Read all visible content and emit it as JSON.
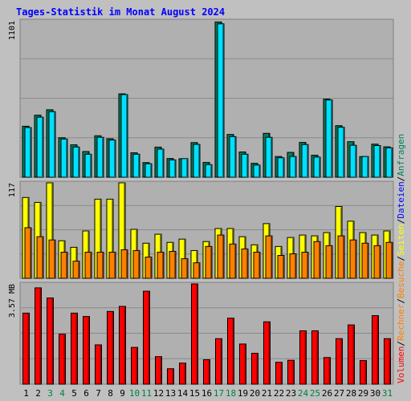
{
  "colors": {
    "background": "#c0c0c0",
    "panel": "#b0b0b0",
    "title": "#0000ff",
    "anfragen": "#00805c",
    "dateien": "#00e0ff",
    "seiten": "#ffff00",
    "besuche": "#ff8000",
    "rechner": "#ff8000",
    "volumen": "#ff0000",
    "weekend": "#008040",
    "weekday": "#000000"
  },
  "chart_data": {
    "title": "Tages-Statistik im Monat August 2024",
    "type": "bar",
    "grid": true,
    "days": [
      "1",
      "2",
      "3",
      "4",
      "5",
      "6",
      "7",
      "8",
      "9",
      "10",
      "11",
      "12",
      "13",
      "14",
      "15",
      "16",
      "17",
      "18",
      "19",
      "20",
      "21",
      "22",
      "23",
      "24",
      "25",
      "26",
      "27",
      "28",
      "29",
      "30",
      "31"
    ],
    "weekend_days": [
      "3",
      "4",
      "10",
      "11",
      "17",
      "18",
      "24",
      "25",
      "31"
    ],
    "right_legend": [
      {
        "label": "Volumen",
        "color": "#ff0000"
      },
      {
        "label": "/",
        "color": "#000000"
      },
      {
        "label": "Rechner",
        "color": "#ff8000"
      },
      {
        "label": "/",
        "color": "#000000"
      },
      {
        "label": "Besuche",
        "color": "#ff8000"
      },
      {
        "label": "/",
        "color": "#000000"
      },
      {
        "label": "Seiten",
        "color": "#ffff00"
      },
      {
        "label": "/",
        "color": "#000000"
      },
      {
        "label": "Dateien",
        "color": "#0000ff"
      },
      {
        "label": "/",
        "color": "#000000"
      },
      {
        "label": "Anfragen",
        "color": "#00805c"
      }
    ],
    "panels": [
      {
        "id": "requests",
        "ymax_label": "1101",
        "ylim": [
          0,
          1101
        ],
        "series": [
          {
            "name": "Anfragen",
            "color": "#00805c",
            "values": [
              359,
              437,
              475,
              278,
              228,
              181,
              292,
              271,
              587,
              172,
              103,
              212,
              132,
              130,
              244,
              104,
              1093,
              301,
              178,
              98,
              309,
              146,
              175,
              245,
              155,
              550,
              363,
              250,
              145,
              233,
              214
            ]
          },
          {
            "name": "Dateien",
            "color": "#00e0ff",
            "values": [
              350,
              423,
              462,
              269,
              213,
              162,
              281,
              262,
              582,
              162,
              95,
              198,
              122,
              131,
              231,
              89,
              1080,
              286,
              162,
              86,
              281,
              137,
              146,
              230,
              142,
              544,
              352,
              225,
              146,
              223,
              207
            ]
          }
        ]
      },
      {
        "id": "pages",
        "ymax_label": "117",
        "ylim": [
          0,
          117
        ],
        "series": [
          {
            "name": "Seiten",
            "color": "#ffff00",
            "values": [
              99,
              93,
              117,
              46,
              38,
              58,
              97,
              97,
              117,
              60,
              43,
              54,
              44,
              48,
              34,
              45,
              61,
              61,
              51,
              41,
              67,
              39,
              50,
              53,
              52,
              56,
              88,
              70,
              56,
              53,
              58
            ]
          },
          {
            "name": "Besuche",
            "color": "#ff8000",
            "values": [
              62,
              51,
              47,
              32,
              21,
              32,
              32,
              32,
              35,
              34,
              26,
              32,
              33,
              24,
              19,
              39,
              53,
              42,
              36,
              32,
              52,
              28,
              30,
              32,
              45,
              40,
              52,
              47,
              43,
              40,
              44
            ]
          }
        ]
      },
      {
        "id": "volume",
        "ymax_label": "3.57 MB",
        "ylim": [
          0,
          3.57
        ],
        "series": [
          {
            "name": "Volumen",
            "color": "#ff0000",
            "values": [
              2.53,
              3.43,
              3.07,
              1.78,
              2.53,
              2.41,
              1.4,
              2.59,
              2.77,
              1.31,
              3.31,
              0.98,
              0.55,
              0.75,
              3.57,
              0.87,
              1.62,
              2.35,
              1.43,
              1.1,
              2.22,
              0.78,
              0.85,
              1.9,
              1.9,
              0.95,
              1.62,
              2.11,
              0.84,
              2.44,
              1.62
            ]
          }
        ]
      }
    ]
  }
}
